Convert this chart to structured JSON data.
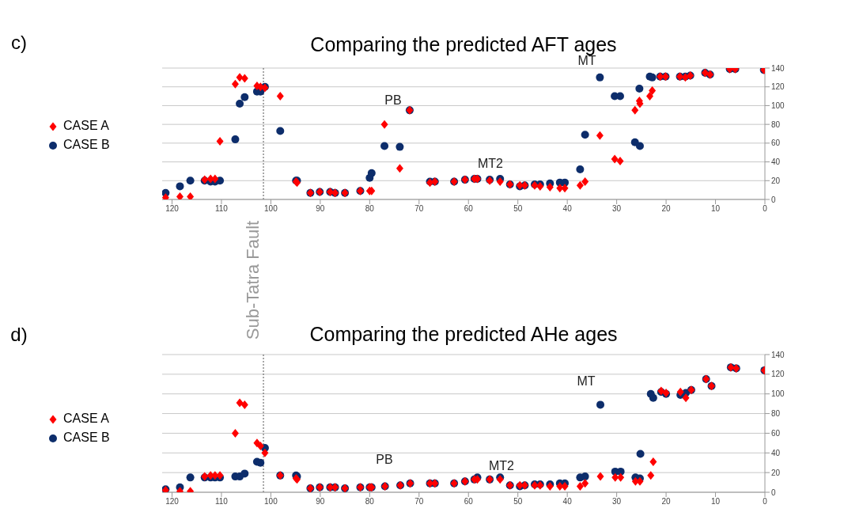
{
  "chart_data": [
    {
      "type": "scatter",
      "title": "Comparing the predicted AFT ages",
      "annotations": [
        "c)",
        "PB",
        "MT2",
        "MT"
      ],
      "x": [
        121.3,
        118.4,
        116.3,
        113.4,
        112.2,
        111.3,
        110.3,
        107.2,
        106.3,
        105.3,
        102.8,
        102.1,
        101.2,
        98.1,
        94.9,
        94.7,
        92,
        90.1,
        88,
        87,
        85,
        81.9,
        80,
        79.6,
        77,
        73.9,
        71.9,
        67.8,
        66.8,
        62.9,
        60.7,
        58.8,
        58.2,
        55.7,
        53.6,
        51.6,
        49.6,
        48.6,
        46.6,
        45.5,
        43.5,
        41.5,
        40.5,
        37.4,
        36.4,
        33.4,
        30.4,
        29.3,
        26.3,
        25.4,
        25.3,
        23.3,
        22.8,
        21.2,
        20.1,
        17.2,
        16.1,
        15.1,
        12.1,
        11.1,
        7.1,
        6.0,
        0.2
      ],
      "series": [
        {
          "name": "CASE A",
          "color": "#ff0000",
          "marker": "diamond",
          "values": [
            2,
            3,
            3,
            21,
            22,
            22,
            62,
            123,
            130,
            129,
            121,
            120,
            119,
            110,
            19,
            18,
            7,
            8,
            8,
            7,
            7,
            9,
            9,
            9,
            80,
            33,
            95,
            18,
            19,
            19,
            21,
            22,
            22,
            20,
            19,
            16,
            15,
            15,
            15,
            14,
            13,
            12,
            12,
            15,
            19,
            68,
            43,
            41,
            95,
            105,
            102,
            110,
            116,
            131,
            131,
            131,
            130,
            132,
            135,
            133,
            139,
            139,
            138
          ]
        },
        {
          "name": "CASE B",
          "color": "#0d2d6b",
          "marker": "circle",
          "values": [
            7,
            14,
            20,
            20,
            19,
            19,
            20,
            64,
            102,
            109,
            115,
            115,
            120,
            73,
            20,
            20,
            7,
            8,
            8,
            7,
            7,
            9,
            23,
            28,
            57,
            56,
            95,
            19,
            19,
            19,
            21,
            22,
            22,
            21,
            22,
            16,
            14,
            15,
            16,
            16,
            17,
            18,
            18,
            32,
            69,
            130,
            110,
            110,
            61,
            118,
            57,
            131,
            130,
            131,
            131,
            131,
            131,
            132,
            135,
            133,
            139,
            139,
            138
          ]
        }
      ],
      "xlim": [
        122,
        0
      ],
      "xticks": [
        120,
        110,
        100,
        90,
        80,
        70,
        60,
        50,
        40,
        30,
        20,
        10,
        0
      ],
      "ylim": [
        0,
        140
      ],
      "yticks": [
        0,
        20,
        40,
        60,
        80,
        100,
        120,
        140
      ],
      "grid": "y",
      "legend": "left",
      "ref_lines": [
        {
          "axis": "x",
          "value": 101.5,
          "label": "Sub-Tatra Fault",
          "line_style": "dotted",
          "color": "#555555"
        }
      ]
    },
    {
      "type": "scatter",
      "title": "Comparing the predicted AHe ages",
      "annotations": [
        "d)",
        "PB",
        "MT2",
        "MT"
      ],
      "x": [
        121.3,
        118.4,
        116.3,
        113.4,
        112.2,
        111.3,
        110.3,
        107.2,
        106.3,
        105.3,
        102.8,
        102.1,
        101.2,
        98.1,
        94.9,
        94.7,
        92,
        90.1,
        88,
        87,
        85,
        81.9,
        80,
        79.6,
        76.9,
        73.8,
        71.8,
        67.8,
        66.8,
        62.9,
        60.7,
        58.8,
        58.2,
        55.7,
        53.6,
        51.6,
        49.6,
        48.6,
        46.6,
        45.5,
        43.5,
        41.5,
        40.5,
        37.4,
        36.4,
        33.3,
        30.3,
        29.2,
        26.2,
        25.3,
        25.2,
        23.1,
        22.6,
        21.0,
        20.0,
        17.1,
        16.0,
        14.9,
        11.9,
        10.8,
        6.9,
        5.8,
        0.1
      ],
      "series": [
        {
          "name": "CASE A",
          "color": "#ff0000",
          "marker": "diamond",
          "values": [
            2,
            1,
            1,
            16,
            17,
            17,
            17,
            60,
            91,
            89,
            50,
            47,
            40,
            17,
            14,
            13,
            4,
            5,
            5,
            5,
            4,
            5,
            5,
            5,
            6,
            7,
            9,
            9,
            9,
            9,
            11,
            13,
            13,
            13,
            13,
            7,
            7,
            7,
            7,
            7,
            6,
            6,
            6,
            6,
            9,
            16,
            15,
            15,
            11,
            11,
            null,
            17,
            31,
            103,
            101,
            102,
            96,
            104,
            115,
            108,
            127,
            126,
            124
          ]
        },
        {
          "name": "CASE B",
          "color": "#0d2d6b",
          "marker": "circle",
          "values": [
            3,
            5,
            15,
            15,
            15,
            15,
            15,
            16,
            16,
            19,
            31,
            30,
            45,
            17,
            17,
            16,
            4,
            5,
            5,
            5,
            4,
            5,
            5,
            5,
            6,
            7,
            9,
            9,
            9,
            9,
            11,
            13,
            15,
            13,
            15,
            7,
            6,
            7,
            8,
            8,
            8,
            9,
            9,
            15,
            16,
            89,
            21,
            21,
            15,
            14,
            39,
            100,
            96,
            102,
            100,
            99,
            101,
            104,
            115,
            108,
            127,
            126,
            124
          ]
        }
      ],
      "xlim": [
        122,
        0
      ],
      "xticks": [
        120,
        110,
        100,
        90,
        80,
        70,
        60,
        50,
        40,
        30,
        20,
        10,
        0
      ],
      "ylim": [
        0,
        140
      ],
      "yticks": [
        0,
        20,
        40,
        60,
        80,
        100,
        120,
        140
      ],
      "grid": "y",
      "legend": "left",
      "ref_lines": [
        {
          "axis": "x",
          "value": 101.5,
          "line_style": "dotted",
          "color": "#555555"
        }
      ]
    }
  ]
}
